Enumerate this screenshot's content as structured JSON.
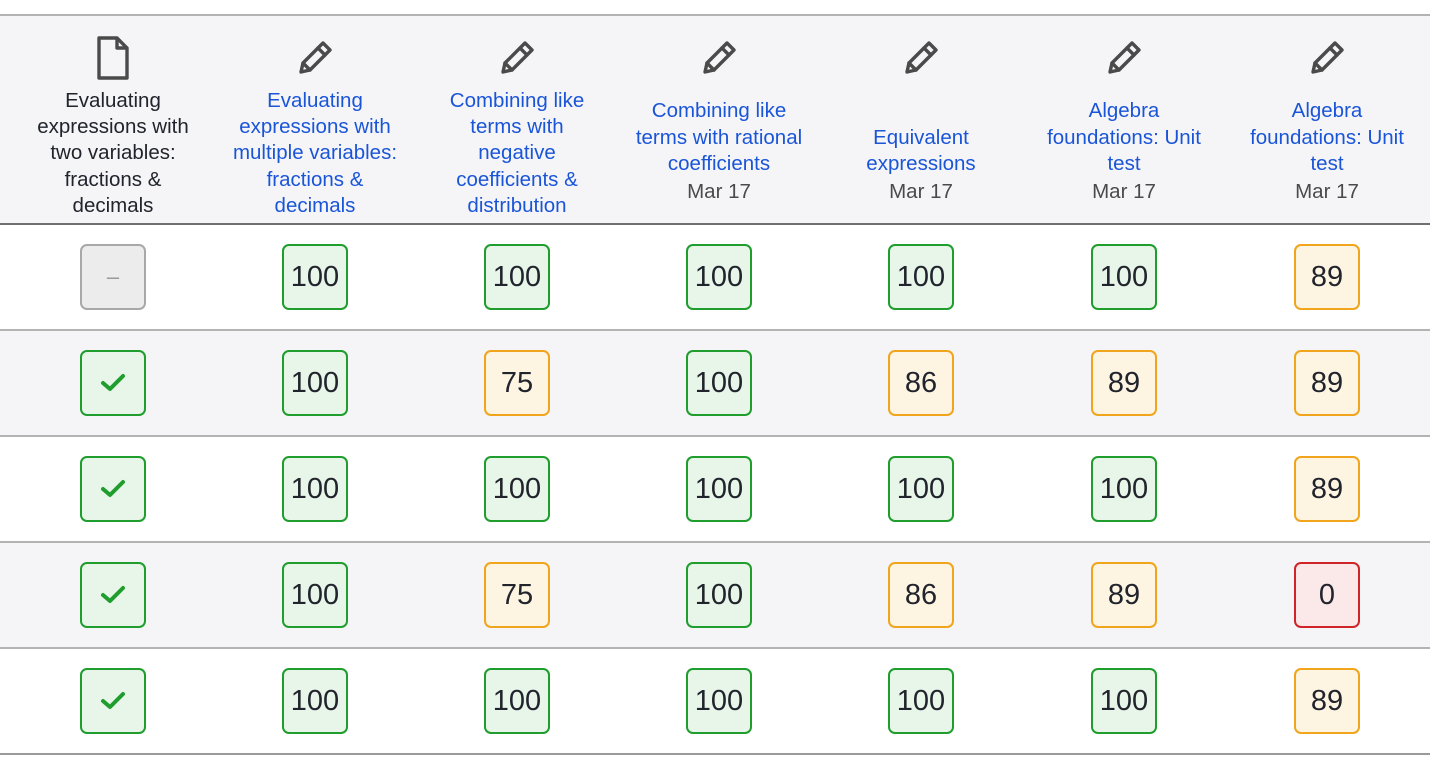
{
  "columns": [
    {
      "title_lines": [
        "Evaluating",
        "expressions with",
        "two variables:",
        "fractions &",
        "decimals"
      ],
      "date": "",
      "icon": "document-icon",
      "link": false
    },
    {
      "title_lines": [
        "Evaluating",
        "expressions with",
        "multiple variables:",
        "fractions &",
        "decimals"
      ],
      "date": "",
      "icon": "pencil-icon",
      "link": true
    },
    {
      "title_lines": [
        "Combining like",
        "terms with",
        "negative",
        "coefficients &",
        "distribution"
      ],
      "date": "",
      "icon": "pencil-icon",
      "link": true
    },
    {
      "title_lines": [
        "Combining like",
        "terms with rational",
        "coefficients"
      ],
      "date": "Mar 17",
      "icon": "pencil-icon",
      "link": true
    },
    {
      "title_lines": [
        "Equivalent",
        "expressions"
      ],
      "date": "Mar 17",
      "icon": "pencil-icon",
      "link": true
    },
    {
      "title_lines": [
        "Algebra",
        "foundations: Unit",
        "test"
      ],
      "date": "Mar 17",
      "icon": "pencil-icon",
      "link": true
    },
    {
      "title_lines": [
        "Algebra",
        "foundations: Unit",
        "test"
      ],
      "date": "Mar 17",
      "icon": "pencil-icon",
      "link": true
    }
  ],
  "rows": [
    [
      {
        "kind": "dash",
        "text": "–",
        "status": "grey"
      },
      {
        "kind": "score",
        "text": "100",
        "status": "green"
      },
      {
        "kind": "score",
        "text": "100",
        "status": "green"
      },
      {
        "kind": "score",
        "text": "100",
        "status": "green"
      },
      {
        "kind": "score",
        "text": "100",
        "status": "green"
      },
      {
        "kind": "score",
        "text": "100",
        "status": "green"
      },
      {
        "kind": "score",
        "text": "89",
        "status": "orange"
      }
    ],
    [
      {
        "kind": "check",
        "text": "",
        "status": "green"
      },
      {
        "kind": "score",
        "text": "100",
        "status": "green"
      },
      {
        "kind": "score",
        "text": "75",
        "status": "orange"
      },
      {
        "kind": "score",
        "text": "100",
        "status": "green"
      },
      {
        "kind": "score",
        "text": "86",
        "status": "orange"
      },
      {
        "kind": "score",
        "text": "89",
        "status": "orange"
      },
      {
        "kind": "score",
        "text": "89",
        "status": "orange"
      }
    ],
    [
      {
        "kind": "check",
        "text": "",
        "status": "green"
      },
      {
        "kind": "score",
        "text": "100",
        "status": "green"
      },
      {
        "kind": "score",
        "text": "100",
        "status": "green"
      },
      {
        "kind": "score",
        "text": "100",
        "status": "green"
      },
      {
        "kind": "score",
        "text": "100",
        "status": "green"
      },
      {
        "kind": "score",
        "text": "100",
        "status": "green"
      },
      {
        "kind": "score",
        "text": "89",
        "status": "orange"
      }
    ],
    [
      {
        "kind": "check",
        "text": "",
        "status": "green"
      },
      {
        "kind": "score",
        "text": "100",
        "status": "green"
      },
      {
        "kind": "score",
        "text": "75",
        "status": "orange"
      },
      {
        "kind": "score",
        "text": "100",
        "status": "green"
      },
      {
        "kind": "score",
        "text": "86",
        "status": "orange"
      },
      {
        "kind": "score",
        "text": "89",
        "status": "orange"
      },
      {
        "kind": "score",
        "text": "0",
        "status": "red"
      }
    ],
    [
      {
        "kind": "check",
        "text": "",
        "status": "green"
      },
      {
        "kind": "score",
        "text": "100",
        "status": "green"
      },
      {
        "kind": "score",
        "text": "100",
        "status": "green"
      },
      {
        "kind": "score",
        "text": "100",
        "status": "green"
      },
      {
        "kind": "score",
        "text": "100",
        "status": "green"
      },
      {
        "kind": "score",
        "text": "100",
        "status": "green"
      },
      {
        "kind": "score",
        "text": "89",
        "status": "orange"
      }
    ]
  ],
  "colors": {
    "link": "#1a55d8",
    "green_border": "#1f9d2d",
    "orange_border": "#f0a51c",
    "red_border": "#cf2528",
    "check": "#1f9d2d"
  }
}
